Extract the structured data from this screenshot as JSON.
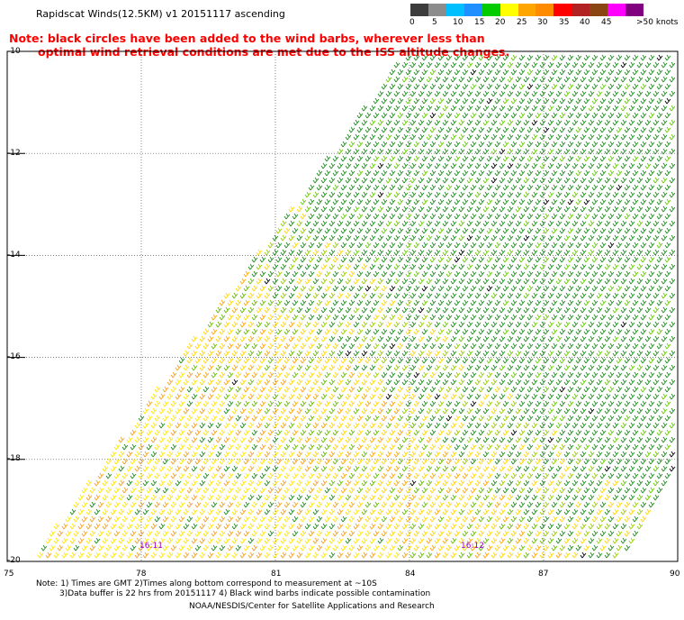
{
  "header": {
    "title": "Rapidscat Winds(12.5KM) v1 20151117 ascending",
    "note_line1": "Note: black circles have been added to the wind barbs, wherever less than",
    "note_line2": "optimal wind retrieval conditions are met due to the ISS altitude changes."
  },
  "legend": {
    "labels": [
      "0",
      "5",
      "10",
      "15",
      "20",
      "25",
      "30",
      "35",
      "40",
      "45",
      ">50 knots"
    ],
    "colors": [
      "#3c3c3c",
      "#8c8c8c",
      "#00bfff",
      "#1e90ff",
      "#00cc00",
      "#ffff00",
      "#ffa500",
      "#ff8c00",
      "#ff0000",
      "#b22222",
      "#8b4513",
      "#ff00ff",
      "#800080"
    ]
  },
  "map": {
    "y_labels": [
      "-10",
      "-12",
      "-14",
      "-16",
      "-18",
      "-20"
    ],
    "x_labels": [
      "75",
      "78",
      "81",
      "84",
      "87",
      "90"
    ],
    "pass_times": [
      "16:11",
      "16:12"
    ],
    "grid_color": "#555555",
    "swath": {
      "lon_range": [
        75,
        90
      ],
      "lat_range": [
        -20,
        -10
      ]
    }
  },
  "footer": {
    "line1": "Note: 1) Times are GMT 2)Times along bottom correspond to measurement at ~10S",
    "line2": "3)Data buffer is 22 hrs from 20151117 4) Black wind barbs indicate possible contamination",
    "line3": "NOAA/NESDIS/Center for Satellite Applications and Research"
  }
}
